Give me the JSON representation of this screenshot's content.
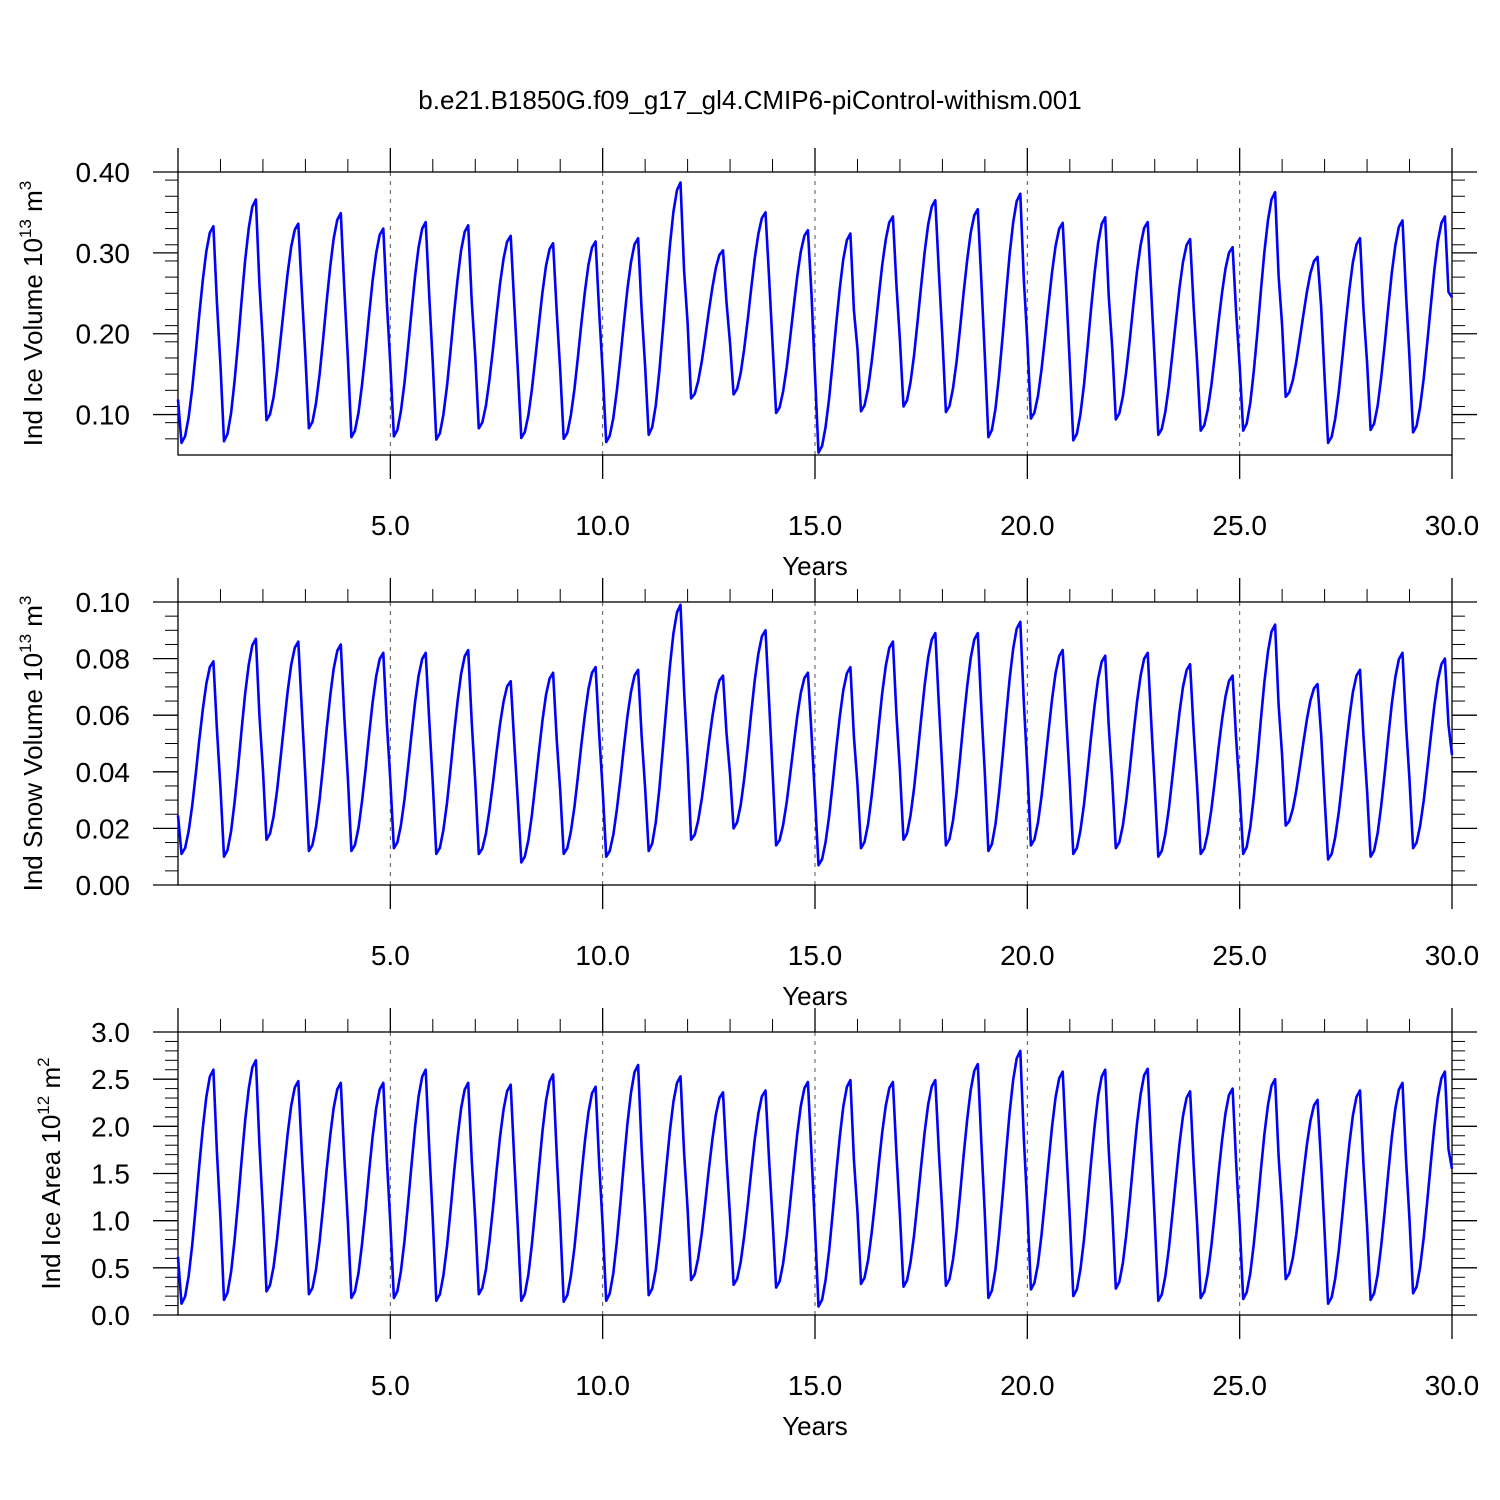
{
  "figure": {
    "title": "b.e21.B1850G.f09_g17_gl4.CMIP6-piControl-withism.001",
    "line_color": "#0000ff",
    "grid_color": "#555555"
  },
  "chart_data": [
    {
      "type": "line",
      "title": "b.e21.B1850G.f09_g17_gl4.CMIP6-piControl-withism.001",
      "xlabel": "Years",
      "ylabel": {
        "prefix": "Ind Ice Volume 10",
        "exp1": "13",
        "mid": " m",
        "exp2": "3"
      },
      "xlim": [
        0.0,
        30.0
      ],
      "ylim": [
        0.05,
        0.4
      ],
      "xticks": [
        5.0,
        10.0,
        15.0,
        20.0,
        25.0,
        30.0
      ],
      "xtick_labels": [
        "5.0",
        "10.0",
        "15.0",
        "20.0",
        "25.0",
        "30.0"
      ],
      "yticks": [
        0.1,
        0.2,
        0.3,
        0.4
      ],
      "ytick_labels": [
        "0.10",
        "0.20",
        "0.30",
        "0.40"
      ],
      "minor_y_step": 0.02,
      "minor_x_step": 1.0,
      "grid": "vertical dashed at major x ticks",
      "legend": "none",
      "series": [
        {
          "x_start": 0.0,
          "x_step": 0.08333,
          "monthly_pattern_note": "12 monthly values per year",
          "annual_max": [
            0.333,
            0.366,
            0.336,
            0.349,
            0.33,
            0.338,
            0.334,
            0.321,
            0.312,
            0.314,
            0.318,
            0.387,
            0.303,
            0.35,
            0.328,
            0.324,
            0.345,
            0.365,
            0.354,
            0.373,
            0.337,
            0.344,
            0.338,
            0.317,
            0.307,
            0.375,
            0.295,
            0.318,
            0.34,
            0.345
          ],
          "annual_min": [
            0.065,
            0.067,
            0.093,
            0.083,
            0.072,
            0.073,
            0.069,
            0.083,
            0.071,
            0.07,
            0.066,
            0.075,
            0.12,
            0.125,
            0.102,
            0.053,
            0.104,
            0.11,
            0.103,
            0.072,
            0.095,
            0.068,
            0.094,
            0.075,
            0.08,
            0.08,
            0.122,
            0.065,
            0.081,
            0.078
          ],
          "x_end_value": 0.245
        }
      ]
    },
    {
      "type": "line",
      "xlabel": "Years",
      "ylabel": {
        "prefix": "Ind Snow Volume 10",
        "exp1": "13",
        "mid": " m",
        "exp2": "3"
      },
      "xlim": [
        0.0,
        30.0
      ],
      "ylim": [
        0.0,
        0.1
      ],
      "xticks": [
        5.0,
        10.0,
        15.0,
        20.0,
        25.0,
        30.0
      ],
      "xtick_labels": [
        "5.0",
        "10.0",
        "15.0",
        "20.0",
        "25.0",
        "30.0"
      ],
      "yticks": [
        0.0,
        0.02,
        0.04,
        0.06,
        0.08,
        0.1
      ],
      "ytick_labels": [
        "0.00",
        "0.02",
        "0.04",
        "0.06",
        "0.08",
        "0.10"
      ],
      "minor_y_step": 0.005,
      "minor_x_step": 1.0,
      "grid": "vertical dashed at major x ticks",
      "legend": "none",
      "series": [
        {
          "x_start": 0.0,
          "x_step": 0.08333,
          "annual_max": [
            0.079,
            0.087,
            0.086,
            0.085,
            0.082,
            0.082,
            0.083,
            0.072,
            0.075,
            0.077,
            0.076,
            0.099,
            0.074,
            0.09,
            0.075,
            0.077,
            0.086,
            0.089,
            0.089,
            0.093,
            0.083,
            0.081,
            0.082,
            0.078,
            0.074,
            0.092,
            0.071,
            0.076,
            0.082,
            0.08
          ],
          "annual_min": [
            0.011,
            0.01,
            0.016,
            0.012,
            0.012,
            0.013,
            0.011,
            0.011,
            0.008,
            0.011,
            0.01,
            0.012,
            0.016,
            0.02,
            0.014,
            0.007,
            0.013,
            0.016,
            0.014,
            0.012,
            0.014,
            0.011,
            0.013,
            0.01,
            0.011,
            0.011,
            0.021,
            0.009,
            0.01,
            0.013
          ],
          "x_end_value": 0.046
        }
      ]
    },
    {
      "type": "line",
      "xlabel": "Years",
      "ylabel": {
        "prefix": "Ind Ice Area 10",
        "exp1": "12",
        "mid": " m",
        "exp2": "2"
      },
      "xlim": [
        0.0,
        30.0
      ],
      "ylim": [
        0.0,
        3.0
      ],
      "xticks": [
        5.0,
        10.0,
        15.0,
        20.0,
        25.0,
        30.0
      ],
      "xtick_labels": [
        "5.0",
        "10.0",
        "15.0",
        "20.0",
        "25.0",
        "30.0"
      ],
      "yticks": [
        0.0,
        0.5,
        1.0,
        1.5,
        2.0,
        2.5,
        3.0
      ],
      "ytick_labels": [
        "0.0",
        "0.5",
        "1.0",
        "1.5",
        "2.0",
        "2.5",
        "3.0"
      ],
      "minor_y_step": 0.1,
      "minor_x_step": 1.0,
      "grid": "vertical dashed at major x ticks",
      "legend": "none",
      "series": [
        {
          "x_start": 0.0,
          "x_step": 0.08333,
          "annual_max": [
            2.6,
            2.7,
            2.48,
            2.46,
            2.46,
            2.6,
            2.46,
            2.44,
            2.55,
            2.42,
            2.65,
            2.53,
            2.36,
            2.38,
            2.47,
            2.49,
            2.47,
            2.49,
            2.66,
            2.8,
            2.58,
            2.6,
            2.61,
            2.37,
            2.4,
            2.5,
            2.28,
            2.38,
            2.46,
            2.58
          ],
          "annual_min": [
            0.12,
            0.16,
            0.25,
            0.22,
            0.18,
            0.18,
            0.15,
            0.22,
            0.15,
            0.14,
            0.15,
            0.21,
            0.37,
            0.32,
            0.29,
            0.09,
            0.33,
            0.3,
            0.31,
            0.18,
            0.27,
            0.2,
            0.28,
            0.15,
            0.18,
            0.17,
            0.38,
            0.12,
            0.16,
            0.23
          ],
          "x_end_value": 1.55
        }
      ]
    }
  ]
}
